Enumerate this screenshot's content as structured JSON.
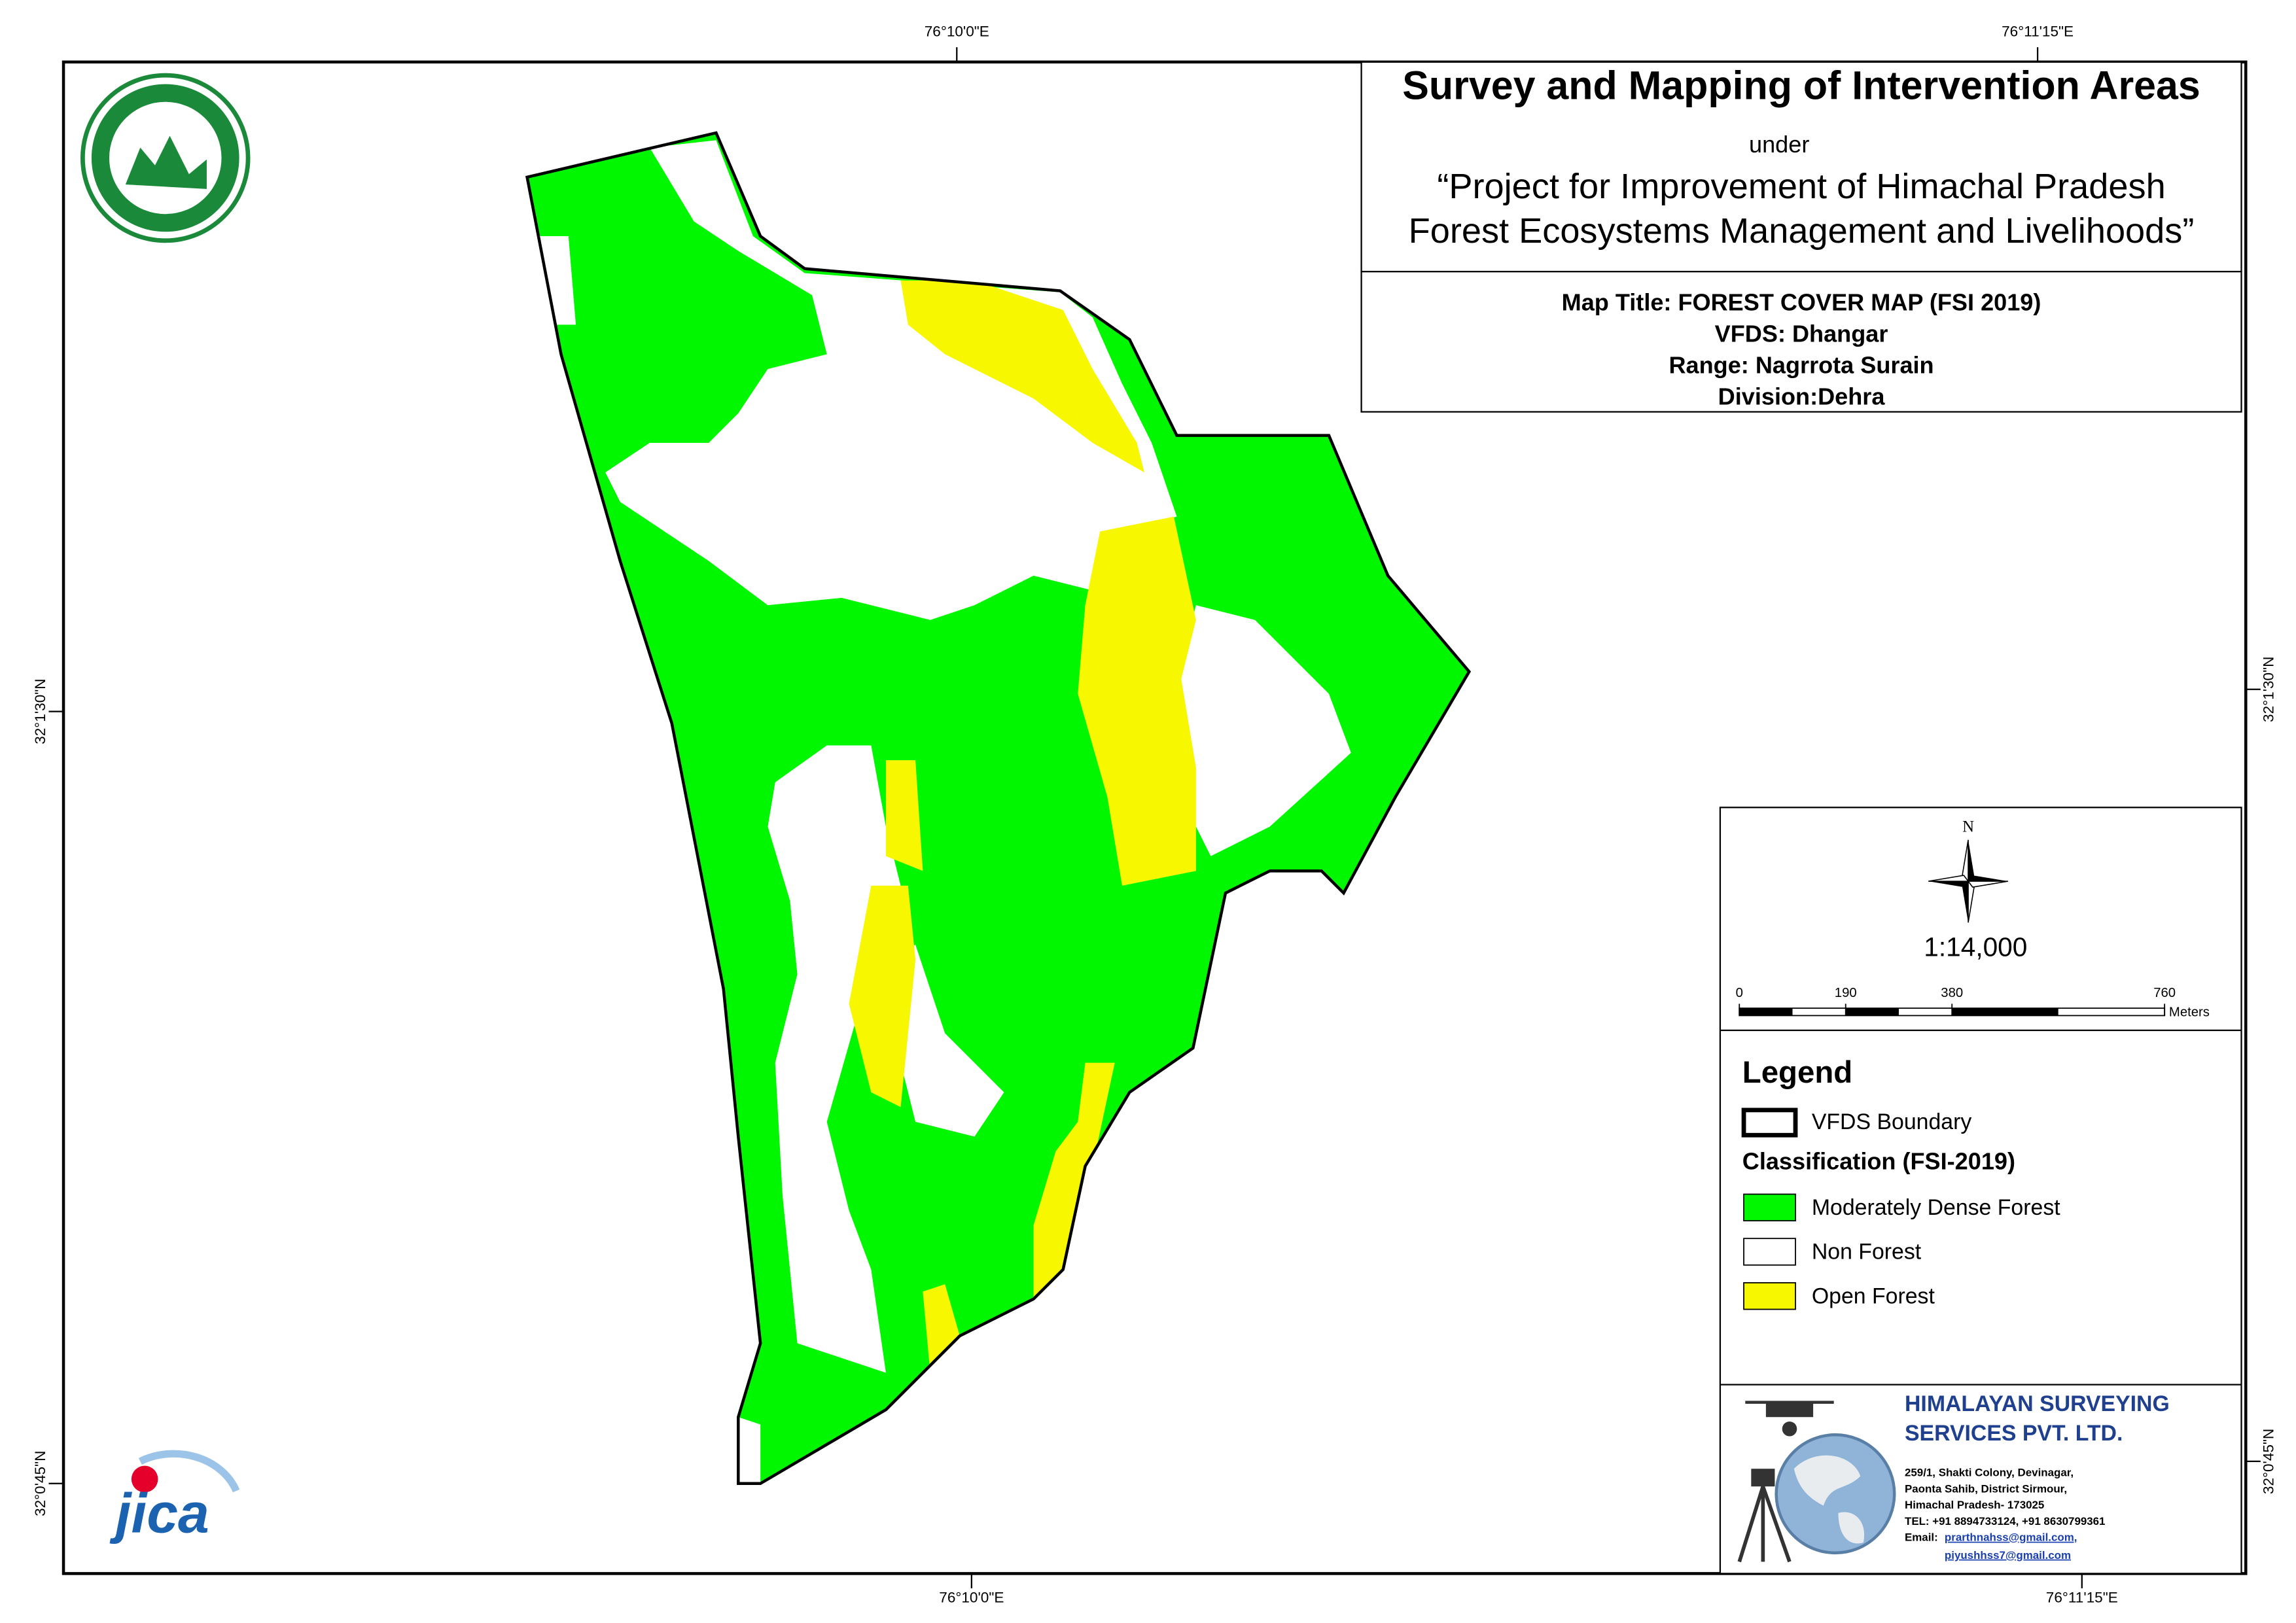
{
  "title": {
    "main": "Survey and Mapping of Intervention Areas",
    "under": "under",
    "project_line1": "“Project for Improvement of Himachal Pradesh",
    "project_line2": "Forest Ecosystems Management and Livelihoods”"
  },
  "map_info": [
    "Map Title: FOREST COVER MAP (FSI 2019)",
    "VFDS: Dhangar",
    "Range: Nagrrota Surain",
    "Division:Dehra"
  ],
  "coordinates": {
    "top": [
      "76°10'0\"E",
      "76°11'15\"E"
    ],
    "bottom": [
      "76°10'0\"E",
      "76°11'15\"E"
    ],
    "left": [
      "32°1'30\"N",
      "32°0'45\"N"
    ],
    "right": [
      "32°1'30\"N",
      "32°0'45\"N"
    ]
  },
  "north": "N",
  "scale": "1:14,000",
  "scale_bar": {
    "ticks": [
      0,
      190,
      380,
      760
    ],
    "unit": "Meters"
  },
  "legend": {
    "title": "Legend",
    "boundary": "VFDS Boundary",
    "classification": "Classification (FSI-2019)",
    "items": [
      {
        "label": "Moderately Dense Forest",
        "color": "#00f700"
      },
      {
        "label": "Non Forest",
        "color": "#ffffff"
      },
      {
        "label": "Open Forest",
        "color": "#f7f700"
      }
    ]
  },
  "company": {
    "name_line1": "HIMALAYAN SURVEYING",
    "name_line2": "SERVICES PVT. LTD.",
    "address": [
      "259/1, Shakti Colony, Devinagar,",
      "Paonta Sahib, District Sirmour,",
      "Himachal Pradesh- 173025",
      "TEL: +91 8894733124, +91 8630799361"
    ],
    "email_label": "Email:",
    "emails": [
      "prarthnahss@gmail.com,",
      "piyushhss7@gmail.com"
    ]
  },
  "logos": {
    "jica": "jica"
  }
}
